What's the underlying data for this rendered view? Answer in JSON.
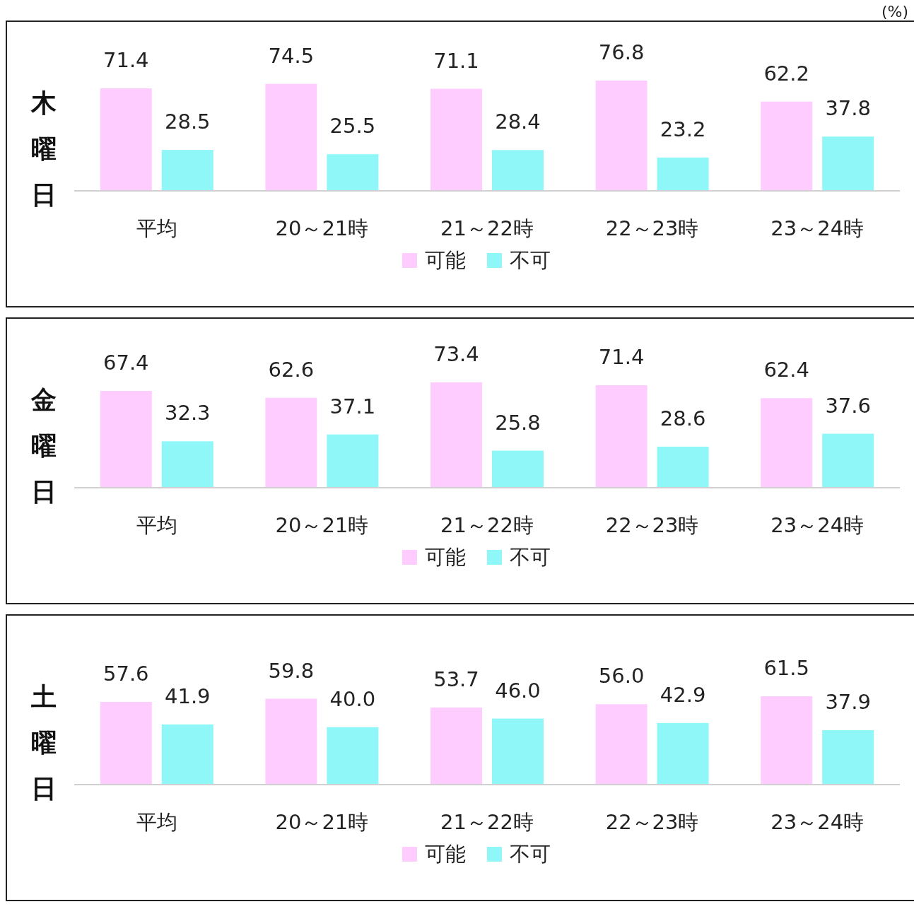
{
  "chart_data": [
    {
      "type": "bar",
      "ylabel": "木曜日",
      "annotations": [
        "(%)"
      ],
      "categories": [
        "平均",
        "20～21時",
        "21～22時",
        "22～23時",
        "23～24時"
      ],
      "series": [
        {
          "name": "可能",
          "color": "#ffccff",
          "values": [
            71.4,
            74.5,
            71.1,
            76.8,
            62.2
          ],
          "value_labels": [
            "71.4",
            "74.5",
            "71.1",
            "76.8",
            "62.2"
          ]
        },
        {
          "name": "不可",
          "color": "#8ff7f7",
          "values": [
            28.5,
            25.5,
            28.4,
            23.2,
            37.8
          ],
          "value_labels": [
            "28.5",
            "25.5",
            "28.4",
            "23.2",
            "37.8"
          ]
        }
      ],
      "legend": "bottom"
    },
    {
      "type": "bar",
      "ylabel": "金曜日",
      "categories": [
        "平均",
        "20～21時",
        "21～22時",
        "22～23時",
        "23～24時"
      ],
      "series": [
        {
          "name": "可能",
          "color": "#ffccff",
          "values": [
            67.4,
            62.6,
            73.4,
            71.4,
            62.4
          ],
          "value_labels": [
            "67.4",
            "62.6",
            "73.4",
            "71.4",
            "62.4"
          ]
        },
        {
          "name": "不可",
          "color": "#8ff7f7",
          "values": [
            32.3,
            37.1,
            25.8,
            28.6,
            37.6
          ],
          "value_labels": [
            "32.3",
            "37.1",
            "25.8",
            "28.6",
            "37.6"
          ]
        }
      ],
      "legend": "bottom"
    },
    {
      "type": "bar",
      "ylabel": "土曜日",
      "categories": [
        "平均",
        "20～21時",
        "21～22時",
        "22～23時",
        "23～24時"
      ],
      "series": [
        {
          "name": "可能",
          "color": "#ffccff",
          "values": [
            57.6,
            59.8,
            53.7,
            56.0,
            61.5
          ],
          "value_labels": [
            "57.6",
            "59.8",
            "53.7",
            "56.0",
            "61.5"
          ]
        },
        {
          "name": "不可",
          "color": "#8ff7f7",
          "values": [
            41.9,
            40.0,
            46.0,
            42.9,
            37.9
          ],
          "value_labels": [
            "41.9",
            "40.0",
            "46.0",
            "42.9",
            "37.9"
          ]
        }
      ],
      "legend": "bottom"
    }
  ]
}
